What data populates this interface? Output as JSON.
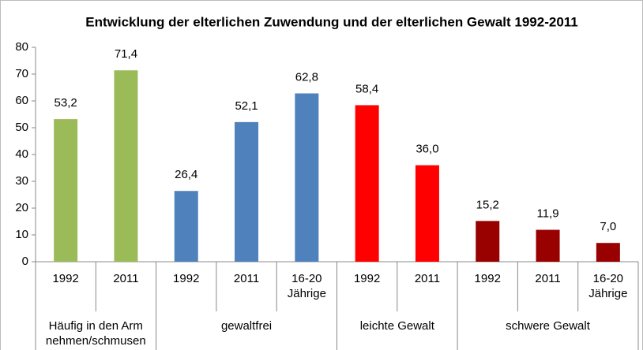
{
  "chart_data": {
    "type": "bar",
    "title": "Entwicklung der elterlichen Zuwendung und der elterlichen Gewalt 1992-2011",
    "ylim": [
      0,
      80
    ],
    "yticks": [
      0,
      10,
      20,
      30,
      40,
      50,
      60,
      70,
      80
    ],
    "groups": [
      {
        "label": "Häufig in den Arm nehmen/schmusen",
        "color": "#9bbb59",
        "categories": [
          "1992",
          "2011"
        ],
        "values": [
          53.2,
          71.4
        ],
        "value_labels": [
          "53,2",
          "71,4"
        ]
      },
      {
        "label": "gewaltfrei",
        "color": "#4f81bd",
        "categories": [
          "1992",
          "2011",
          "16-20 Jährige"
        ],
        "values": [
          26.4,
          52.1,
          62.8
        ],
        "value_labels": [
          "26,4",
          "52,1",
          "62,8"
        ]
      },
      {
        "label": "leichte Gewalt",
        "color": "#ff0000",
        "categories": [
          "1992",
          "2011"
        ],
        "values": [
          58.4,
          36.0
        ],
        "value_labels": [
          "58,4",
          "36,0"
        ]
      },
      {
        "label": "schwere Gewalt",
        "color": "#990000",
        "categories": [
          "1992",
          "2011",
          "16-20 Jährige"
        ],
        "values": [
          15.2,
          11.9,
          7.0
        ],
        "value_labels": [
          "15,2",
          "11,9",
          "7,0"
        ]
      }
    ]
  }
}
